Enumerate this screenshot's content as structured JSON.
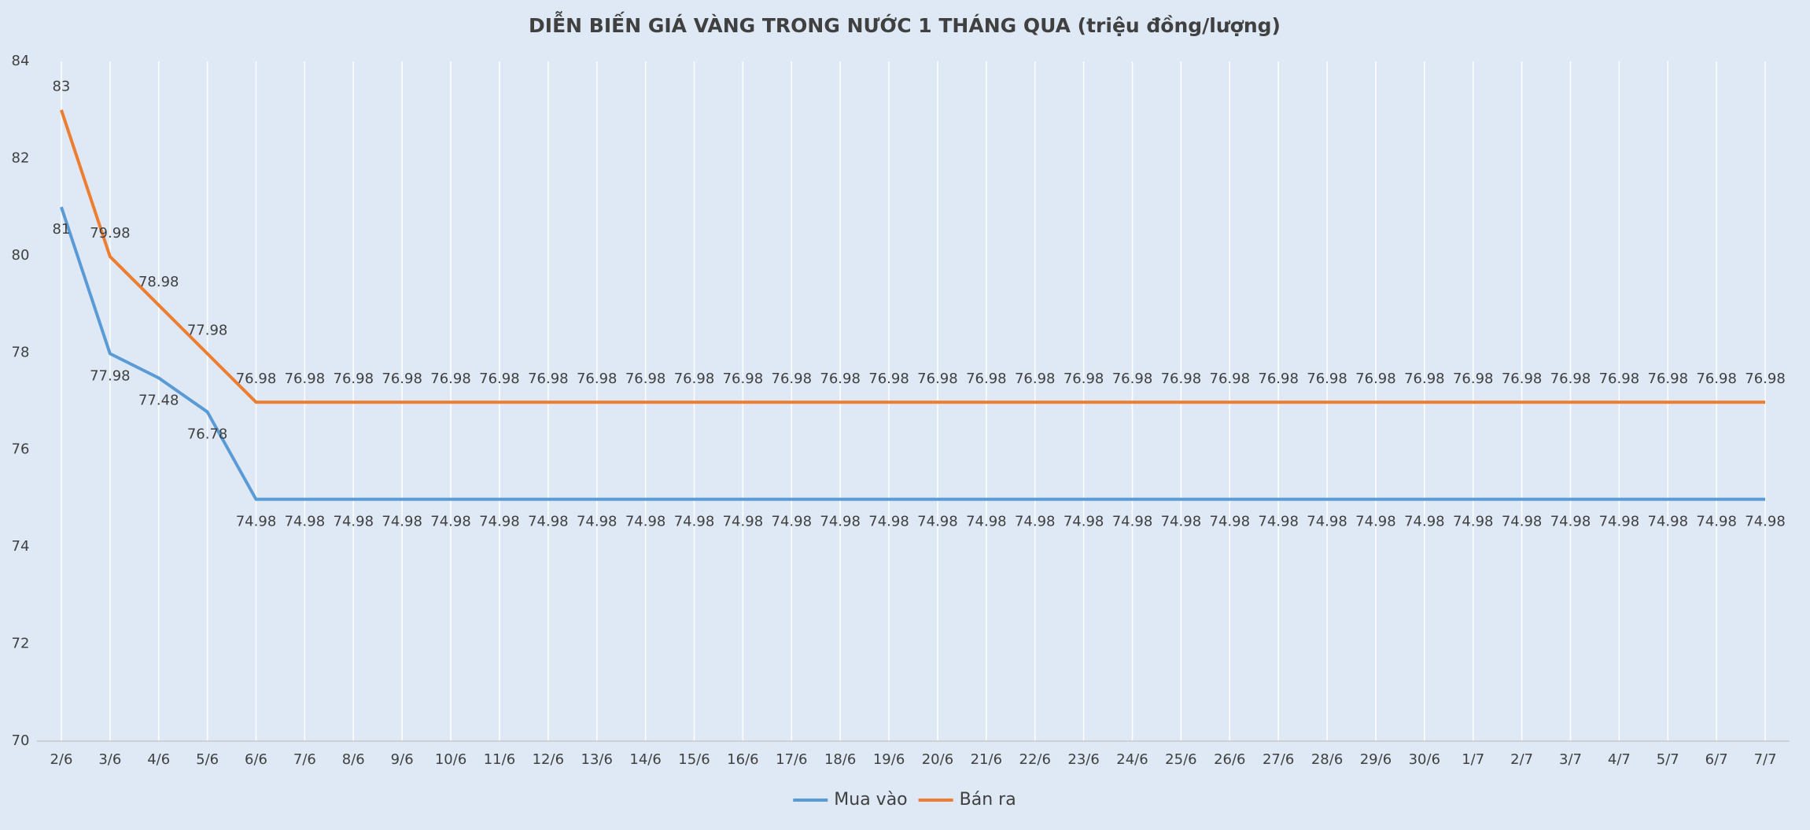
{
  "chart_data": {
    "type": "line",
    "title": "DIỄN BIẾN GIÁ VÀNG TRONG NƯỚC 1 THÁNG QUA (triệu đồng/lượng)",
    "categories": [
      "2/6",
      "3/6",
      "4/6",
      "5/6",
      "6/6",
      "7/6",
      "8/6",
      "9/6",
      "10/6",
      "11/6",
      "12/6",
      "13/6",
      "14/6",
      "15/6",
      "16/6",
      "17/6",
      "18/6",
      "19/6",
      "20/6",
      "21/6",
      "22/6",
      "23/6",
      "24/6",
      "25/6",
      "26/6",
      "27/6",
      "28/6",
      "29/6",
      "30/6",
      "1/7",
      "2/7",
      "3/7",
      "4/7",
      "5/7",
      "6/7",
      "7/7"
    ],
    "series": [
      {
        "name": "Mua vào",
        "color": "#5b9bd5",
        "label_position": "below",
        "values": [
          81,
          77.98,
          77.48,
          76.78,
          74.98,
          74.98,
          74.98,
          74.98,
          74.98,
          74.98,
          74.98,
          74.98,
          74.98,
          74.98,
          74.98,
          74.98,
          74.98,
          74.98,
          74.98,
          74.98,
          74.98,
          74.98,
          74.98,
          74.98,
          74.98,
          74.98,
          74.98,
          74.98,
          74.98,
          74.98,
          74.98,
          74.98,
          74.98,
          74.98,
          74.98,
          74.98
        ]
      },
      {
        "name": "Bán ra",
        "color": "#ed7d31",
        "label_position": "above",
        "values": [
          83,
          79.98,
          78.98,
          77.98,
          76.98,
          76.98,
          76.98,
          76.98,
          76.98,
          76.98,
          76.98,
          76.98,
          76.98,
          76.98,
          76.98,
          76.98,
          76.98,
          76.98,
          76.98,
          76.98,
          76.98,
          76.98,
          76.98,
          76.98,
          76.98,
          76.98,
          76.98,
          76.98,
          76.98,
          76.98,
          76.98,
          76.98,
          76.98,
          76.98,
          76.98,
          76.98
        ]
      }
    ],
    "ylim": [
      70,
      84
    ],
    "yticks": [
      70,
      72,
      74,
      76,
      78,
      80,
      82,
      84
    ],
    "grid": "x",
    "legend": "bottom"
  }
}
